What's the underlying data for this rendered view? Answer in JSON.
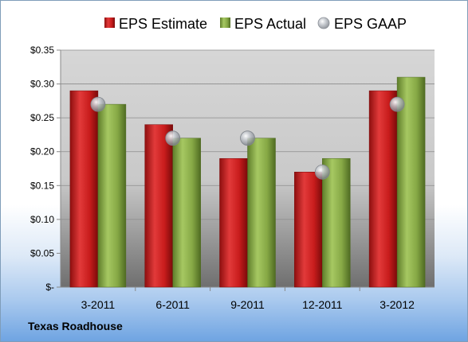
{
  "company_label": "Texas Roadhouse",
  "colors": {
    "estimate": "#cc1f1f",
    "actual": "#8db04a",
    "gaap": "#b8bcc4"
  },
  "chart_data": {
    "type": "bar",
    "categories": [
      "3-2011",
      "6-2011",
      "9-2011",
      "12-2011",
      "3-2012"
    ],
    "series": [
      {
        "name": "EPS Estimate",
        "kind": "bar",
        "values": [
          0.29,
          0.24,
          0.19,
          0.17,
          0.29
        ]
      },
      {
        "name": "EPS Actual",
        "kind": "bar",
        "values": [
          0.27,
          0.22,
          0.22,
          0.19,
          0.31
        ]
      },
      {
        "name": "EPS GAAP",
        "kind": "marker",
        "values": [
          0.27,
          0.22,
          0.22,
          0.17,
          0.27
        ]
      }
    ],
    "ylim": [
      0,
      0.35
    ],
    "y_ticks": [
      {
        "value": 0.35,
        "label": "$0.35"
      },
      {
        "value": 0.3,
        "label": "$0.30"
      },
      {
        "value": 0.25,
        "label": "$0.25"
      },
      {
        "value": 0.2,
        "label": "$0.20"
      },
      {
        "value": 0.15,
        "label": "$0.15"
      },
      {
        "value": 0.1,
        "label": "$0.10"
      },
      {
        "value": 0.05,
        "label": "$0.05"
      },
      {
        "value": 0,
        "label": "$-"
      }
    ],
    "grid": true,
    "legend_position": "top"
  }
}
